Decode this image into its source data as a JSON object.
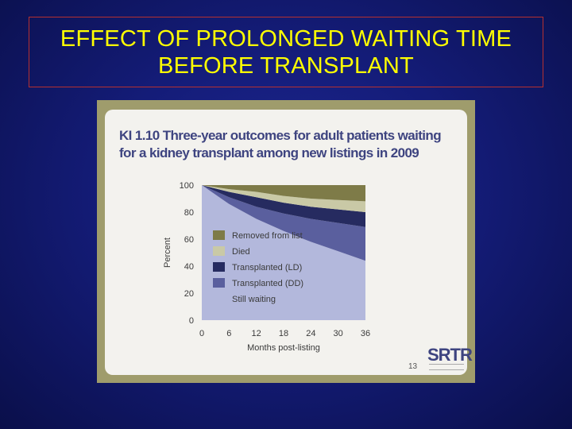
{
  "slide": {
    "title_line1": "EFFECT OF PROLONGED WAITING TIME",
    "title_line2": "BEFORE TRANSPLANT"
  },
  "figure": {
    "title_line1": "KI 1.10 Three-year outcomes for adult patients waiting",
    "title_line2": "for a kidney transplant among new listings in 2009",
    "logo": "SRTR",
    "page_number": "13"
  },
  "colors": {
    "removed": "#7e7b48",
    "died": "#c9c9a6",
    "transplanted_ld": "#262b60",
    "transplanted_dd": "#5a5f9e",
    "still_waiting": "#b3b8dc"
  },
  "chart_data": {
    "type": "area",
    "stacked": true,
    "xlabel": "Months post-listing",
    "ylabel": "Percent",
    "x": [
      0,
      6,
      12,
      18,
      24,
      30,
      36
    ],
    "xlim": [
      0,
      36
    ],
    "ylim": [
      0,
      100
    ],
    "yticks": [
      0,
      20,
      40,
      60,
      80,
      100
    ],
    "legend_position": "center-left",
    "series": [
      {
        "name": "Still waiting",
        "values": [
          100,
          86,
          75,
          66,
          58,
          51,
          44
        ]
      },
      {
        "name": "Transplanted (DD)",
        "values": [
          0,
          5,
          9,
          13,
          17,
          21,
          25
        ]
      },
      {
        "name": "Transplanted (LD)",
        "values": [
          0,
          4,
          7,
          8,
          9,
          10,
          11
        ]
      },
      {
        "name": "Died",
        "values": [
          0,
          2,
          4,
          5,
          6,
          7,
          8
        ]
      },
      {
        "name": "Removed from list",
        "values": [
          0,
          3,
          5,
          8,
          10,
          11,
          12
        ]
      }
    ],
    "legend": [
      {
        "label": "Removed from list",
        "color_key": "removed"
      },
      {
        "label": "Died",
        "color_key": "died"
      },
      {
        "label": "Transplanted (LD)",
        "color_key": "transplanted_ld"
      },
      {
        "label": "Transplanted (DD)",
        "color_key": "transplanted_dd"
      },
      {
        "label": "Still waiting",
        "color_key": "still_waiting"
      }
    ]
  }
}
